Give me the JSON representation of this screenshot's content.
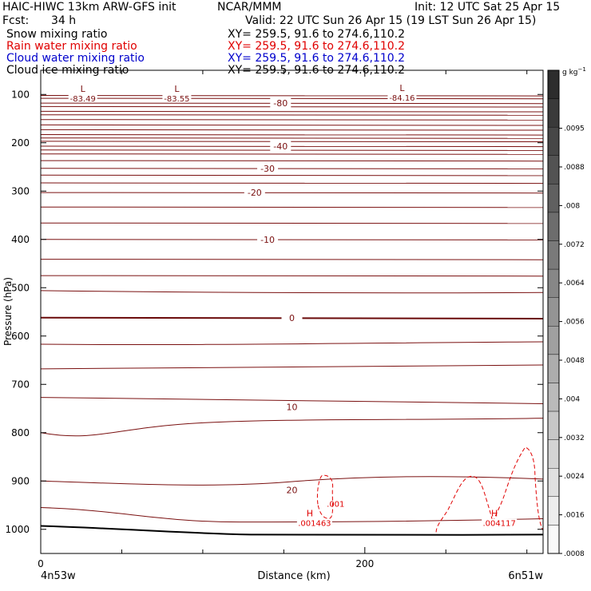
{
  "header": {
    "title": "HAIC-HIWC 13km ARW-GFS init",
    "org": "NCAR/MMM",
    "init": "Init: 12 UTC Sat 25 Apr 15",
    "fcst_label": "Fcst:",
    "fcst_value": "34 h",
    "valid": "Valid: 22 UTC Sun 26 Apr 15 (19 LST Sun 26 Apr 15)"
  },
  "fields": [
    {
      "name": "Snow mixing ratio",
      "xy": "XY= 259.5, 91.6 to 274.6,110.2",
      "color": "#000000"
    },
    {
      "name": "Rain water mixing ratio",
      "xy": "XY= 259.5, 91.6 to 274.6,110.2",
      "color": "#e00000"
    },
    {
      "name": "Cloud water mixing ratio",
      "xy": "XY= 259.5, 91.6 to 274.6,110.2",
      "color": "#0000cc"
    },
    {
      "name": "Cloud ice mixing ratio",
      "xy": "XY= 259.5, 91.6 to 274.6,110.2",
      "color": "#000000"
    }
  ],
  "colorbar": {
    "unit": "g kg",
    "unit_exp": "−1",
    "labels": [
      ".0095",
      ".0088",
      ".008",
      ".0072",
      ".0064",
      ".0056",
      ".0048",
      ".004",
      ".0032",
      ".0024",
      ".0016",
      ".0008"
    ]
  },
  "chart_data": {
    "type": "line",
    "ylabel": "Pressure (hPa)",
    "xlabel": "Distance (km)",
    "y_ticks": [
      100,
      200,
      300,
      400,
      500,
      600,
      700,
      800,
      900,
      1000
    ],
    "x_ticks": [
      0,
      200
    ],
    "x_range": [
      0,
      310
    ],
    "y_range": [
      50,
      1050
    ],
    "left_point": "4n53w",
    "right_point": "6n51w",
    "temperature_labels": [
      {
        "text": "-80",
        "x": 148,
        "p": 118
      },
      {
        "text": "-40",
        "x": 148,
        "p": 207
      },
      {
        "text": "-30",
        "x": 140,
        "p": 253
      },
      {
        "text": "-20",
        "x": 132,
        "p": 303
      },
      {
        "text": "-10",
        "x": 140,
        "p": 400
      },
      {
        "text": "0",
        "x": 155,
        "p": 562
      },
      {
        "text": "10",
        "x": 155,
        "p": 747
      },
      {
        "text": "20",
        "x": 155,
        "p": 919
      }
    ],
    "lows": [
      {
        "mark": "L",
        "value": "-83.49",
        "x": 25,
        "p": 95
      },
      {
        "mark": "L",
        "value": "-83.55",
        "x": 83,
        "p": 95
      },
      {
        "mark": "L",
        "value": "-84.16",
        "x": 222,
        "p": 93
      }
    ],
    "rain_highs": [
      {
        "mark": "H",
        "value": ".001463",
        "x": 168,
        "p": 980
      },
      {
        "mark": "H",
        "value": ".004117",
        "x": 282,
        "p": 980
      }
    ],
    "rain_contour_labels": [
      {
        "text": ".001",
        "x": 182,
        "p": 947
      }
    ]
  }
}
